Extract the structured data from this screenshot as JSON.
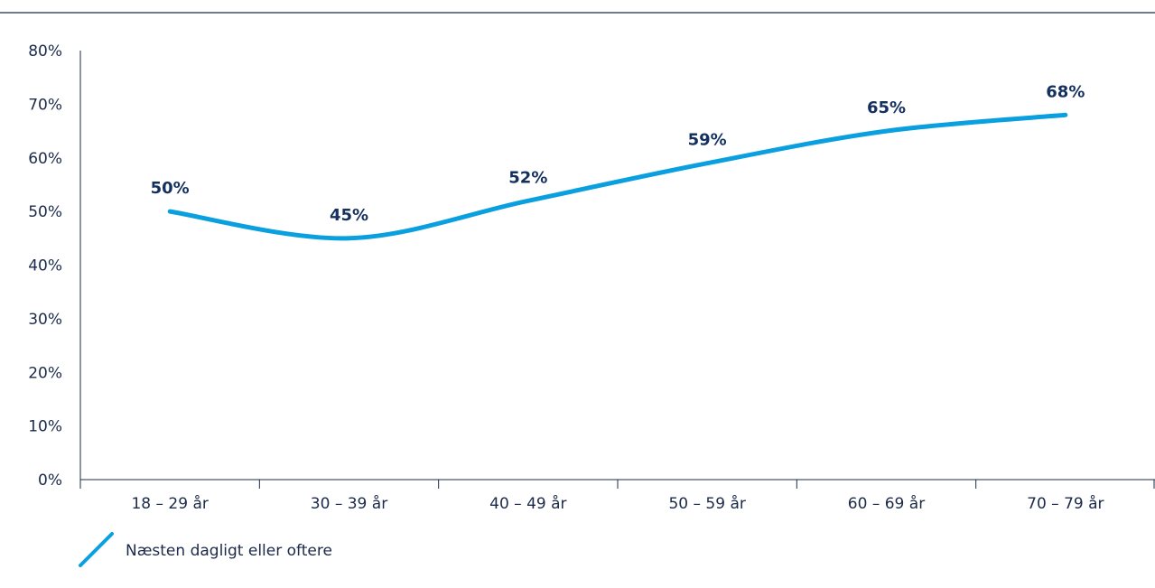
{
  "chart_data": {
    "type": "line",
    "title": "",
    "xlabel": "",
    "ylabel": "",
    "categories": [
      "18 – 29 år",
      "30 – 39 år",
      "40 – 49 år",
      "50 – 59 år",
      "60 – 69 år",
      "70 – 79 år"
    ],
    "series": [
      {
        "name": "Næsten dagligt eller oftere",
        "values": [
          50,
          45,
          52,
          59,
          65,
          68
        ],
        "labels": [
          "50%",
          "45%",
          "52%",
          "59%",
          "65%",
          "68%"
        ],
        "color": "#0aa0e0"
      }
    ],
    "ylim": [
      0,
      80
    ],
    "yticks": [
      0,
      10,
      20,
      30,
      40,
      50,
      60,
      70,
      80
    ],
    "ytick_labels": [
      "0%",
      "10%",
      "20%",
      "30%",
      "40%",
      "50%",
      "60%",
      "70%",
      "80%"
    ],
    "grid": false,
    "legend_position": "bottom-left",
    "smooth": true
  },
  "colors": {
    "line": "#0aa0e0",
    "axis": "#1b2a4a",
    "data_label": "#14305e",
    "top_rule": "#1b2a4a"
  }
}
